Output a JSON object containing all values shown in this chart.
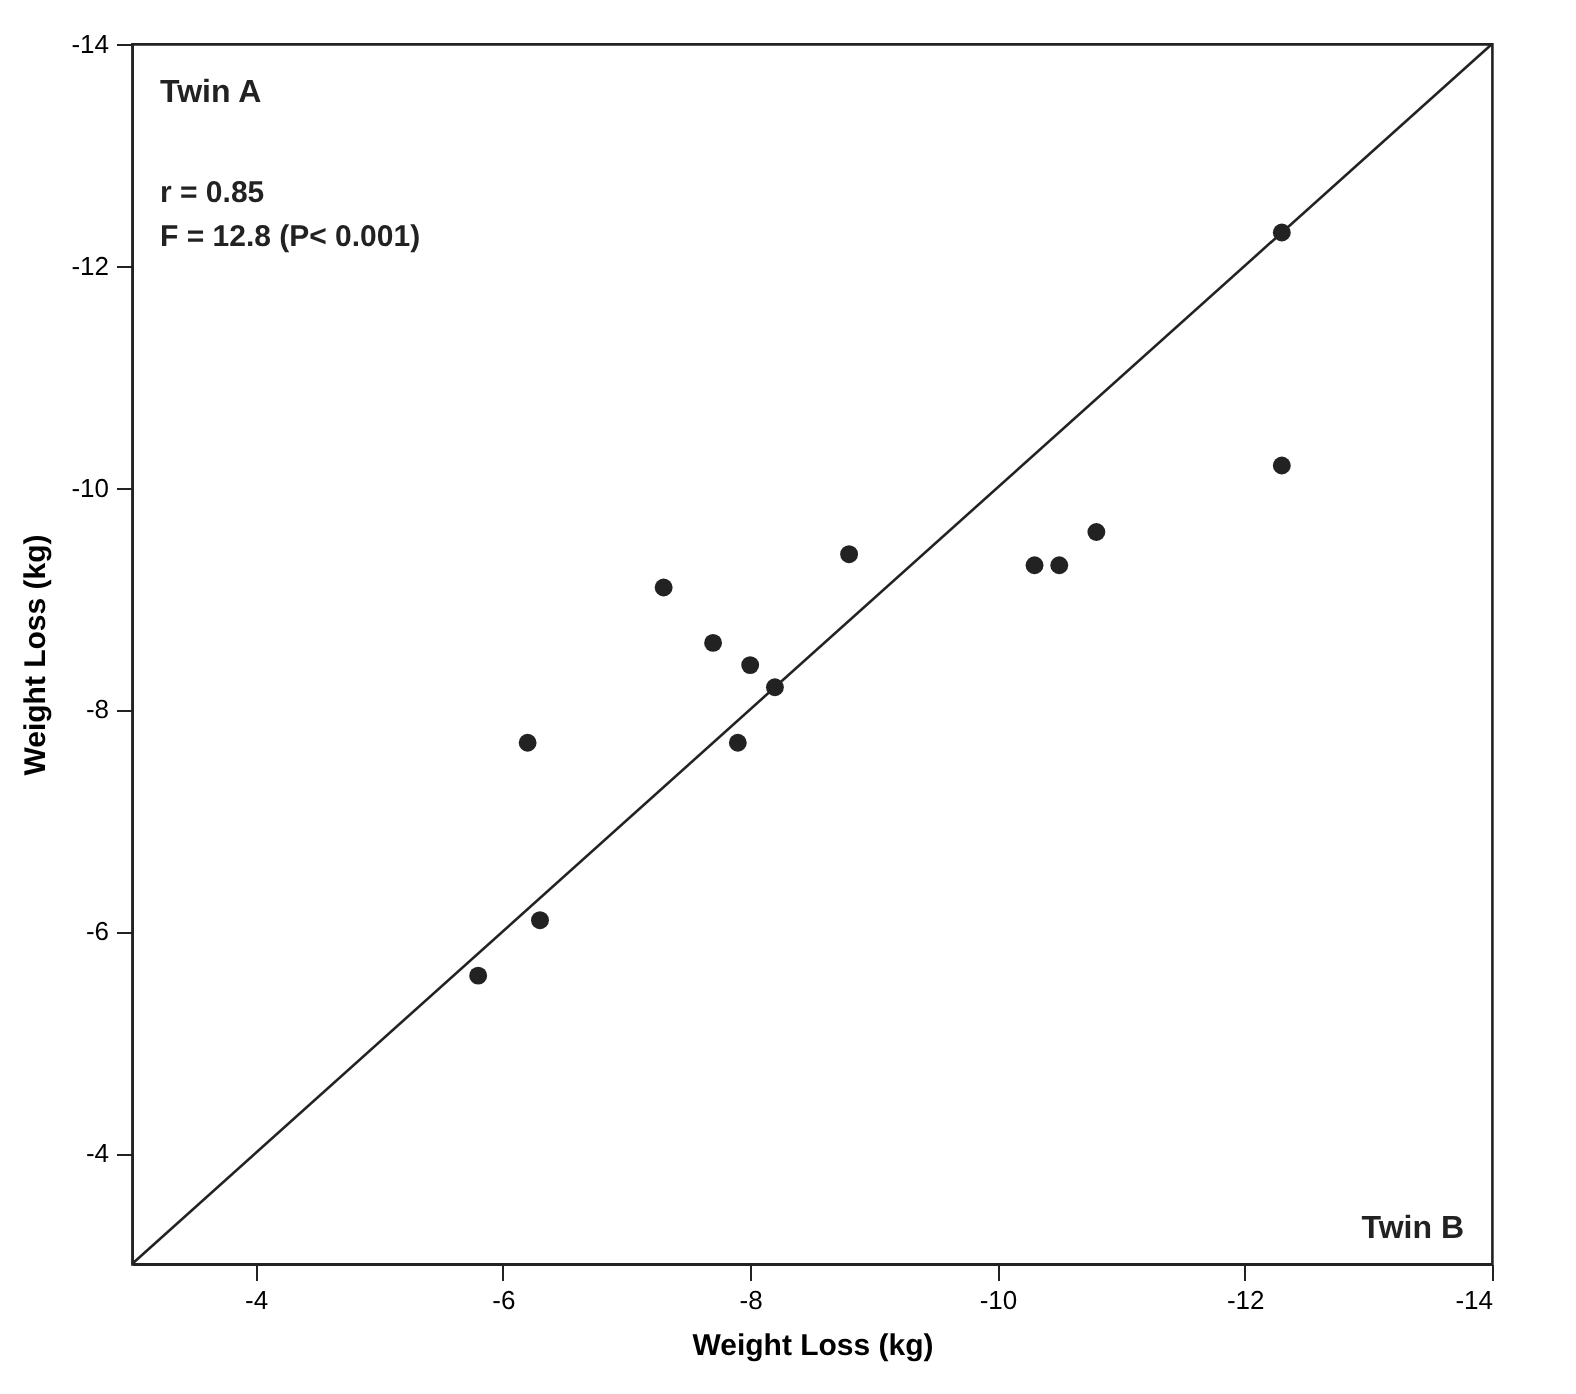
{
  "chart_data": {
    "type": "scatter",
    "xlabel": "Weight Loss (kg)",
    "ylabel": "Weight Loss (kg)",
    "xlim": [
      -3,
      -14
    ],
    "ylim": [
      -3,
      -14
    ],
    "xticks": [
      -4,
      -6,
      -8,
      -10,
      -12,
      -14
    ],
    "yticks": [
      -4,
      -6,
      -8,
      -10,
      -12,
      -14
    ],
    "grid": false,
    "annotations": [
      "Twin A",
      "r = 0.85",
      "F = 12.8 (P< 0.001)",
      "Twin B"
    ],
    "series": [
      {
        "marker": "circle",
        "color": "#222222",
        "x": [
          -5.8,
          -6.3,
          -6.2,
          -7.3,
          -7.7,
          -8.0,
          -7.9,
          -8.2,
          -8.8,
          -10.3,
          -10.5,
          -10.8,
          -12.3,
          -12.3
        ],
        "values": [
          -5.6,
          -6.1,
          -7.7,
          -9.1,
          -8.6,
          -8.4,
          -7.7,
          -8.2,
          -9.4,
          -9.3,
          -9.3,
          -9.6,
          -12.3,
          -10.2
        ]
      },
      {
        "type": "line",
        "color": "#222222",
        "x": [
          -3,
          -14
        ],
        "values": [
          -3,
          -14
        ],
        "line_style": "solid"
      }
    ]
  }
}
